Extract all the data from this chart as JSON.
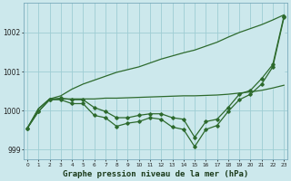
{
  "title": "Graphe pression niveau de la mer (hPa)",
  "hours": [
    0,
    1,
    2,
    3,
    4,
    5,
    6,
    7,
    8,
    9,
    10,
    11,
    12,
    13,
    14,
    15,
    16,
    17,
    18,
    19,
    20,
    21,
    22,
    23
  ],
  "line_measured": [
    999.55,
    999.98,
    1000.28,
    1000.28,
    1000.18,
    1000.18,
    999.88,
    999.82,
    999.6,
    999.68,
    999.72,
    999.82,
    999.78,
    999.58,
    999.52,
    999.08,
    999.52,
    999.62,
    999.98,
    1000.28,
    1000.42,
    1000.68,
    1001.12,
    1002.38
  ],
  "line_smooth_upper": [
    999.55,
    999.98,
    1000.28,
    1000.32,
    1000.28,
    1000.28,
    1000.08,
    999.98,
    999.82,
    999.82,
    999.88,
    999.92,
    999.92,
    999.82,
    999.78,
    999.32,
    999.72,
    999.78,
    1000.08,
    1000.42,
    1000.52,
    1000.82,
    1001.18,
    1002.42
  ],
  "line_trend_top": [
    999.55,
    1000.05,
    1000.3,
    1000.38,
    1000.55,
    1000.68,
    1000.78,
    1000.88,
    1000.98,
    1001.05,
    1001.12,
    1001.22,
    1001.32,
    1001.4,
    1001.48,
    1001.55,
    1001.65,
    1001.75,
    1001.88,
    1002.0,
    1002.1,
    1002.2,
    1002.32,
    1002.45
  ],
  "line_trend_bottom": [
    999.55,
    1000.05,
    1000.3,
    1000.3,
    1000.3,
    1000.3,
    1000.3,
    1000.32,
    1000.32,
    1000.33,
    1000.34,
    1000.35,
    1000.36,
    1000.37,
    1000.38,
    1000.38,
    1000.39,
    1000.4,
    1000.42,
    1000.45,
    1000.48,
    1000.52,
    1000.58,
    1000.65
  ],
  "ylim": [
    998.75,
    1002.75
  ],
  "yticks": [
    999,
    1000,
    1001,
    1002
  ],
  "bg_color": "#cce8ec",
  "grid_color": "#9ecdd4",
  "line_color": "#2d6a2d",
  "title_fontsize": 6.5
}
